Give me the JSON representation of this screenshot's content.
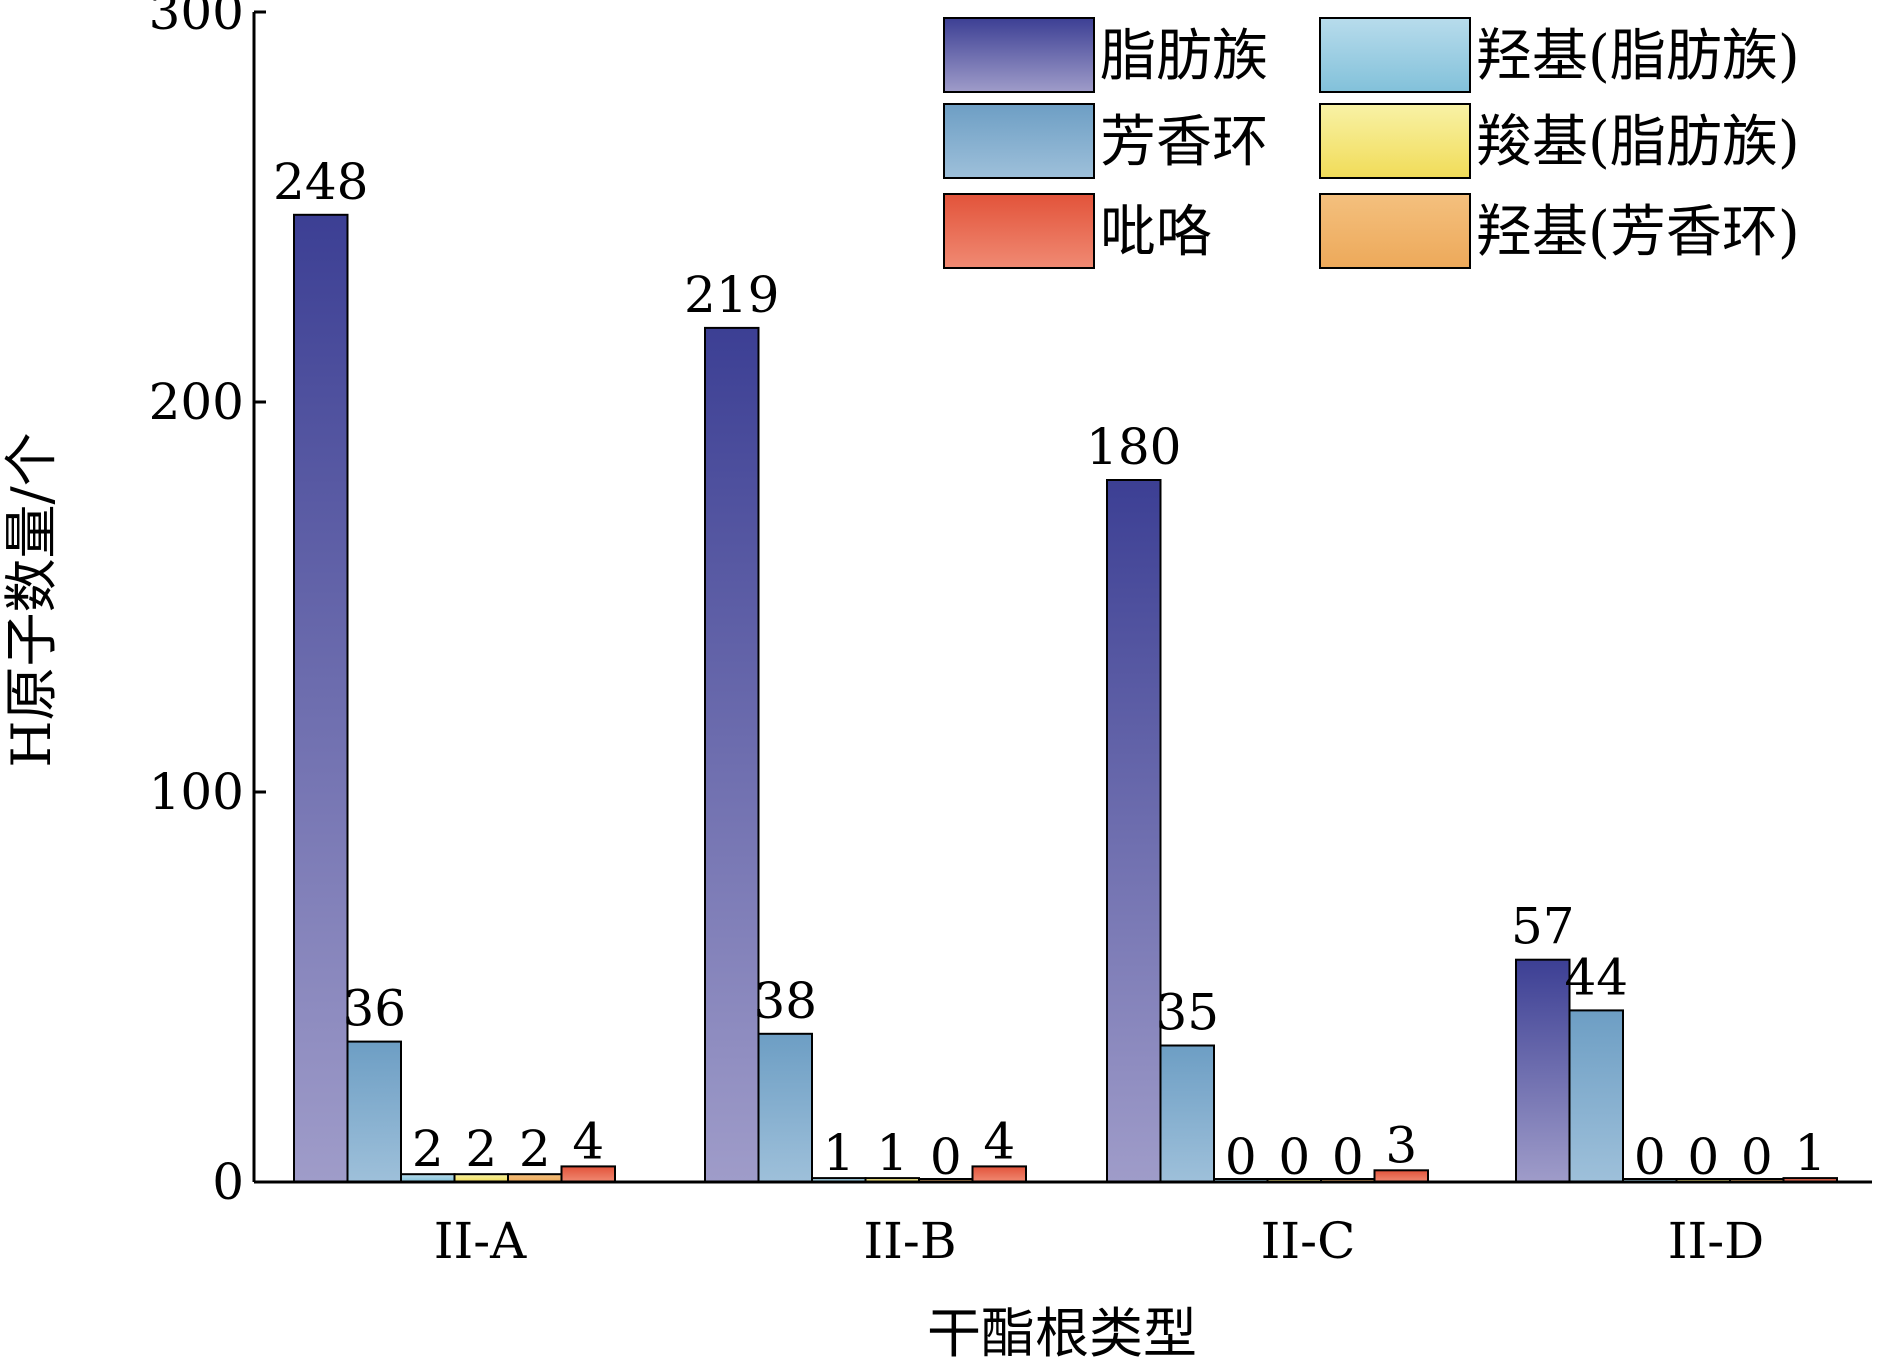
{
  "chart_data": {
    "type": "bar",
    "xlabel": "干酯根类型",
    "ylabel": "H原子数量/个",
    "ylim": [
      0,
      300
    ],
    "yticks": [
      0,
      100,
      200,
      300
    ],
    "categories": [
      "II-A",
      "II-B",
      "II-C",
      "II-D"
    ],
    "legend_position": "top-right",
    "series": [
      {
        "name": "脂肪族",
        "values": [
          248,
          219,
          180,
          57
        ],
        "color_top": "#3c3f94",
        "color_bottom": "#9f9cc9"
      },
      {
        "name": "芳香环",
        "values": [
          36,
          38,
          35,
          44
        ],
        "color_top": "#6d9ec4",
        "color_bottom": "#9ec0da"
      },
      {
        "name": "羟基(脂肪族)",
        "values": [
          2,
          1,
          0,
          0
        ],
        "color_top": "#b8dcec",
        "color_bottom": "#82c1da"
      },
      {
        "name": "羧基(脂肪族)",
        "values": [
          2,
          1,
          0,
          0
        ],
        "color_top": "#f8f2a6",
        "color_bottom": "#f1dc58"
      },
      {
        "name": "羟基(芳香环)",
        "values": [
          2,
          0,
          0,
          0
        ],
        "color_top": "#f4c07e",
        "color_bottom": "#eda95a"
      },
      {
        "name": "吡咯",
        "values": [
          4,
          4,
          3,
          1
        ],
        "color_top": "#e2533a",
        "color_bottom": "#f08a73"
      }
    ],
    "legend_layout": [
      [
        "脂肪族",
        "羟基(脂肪族)"
      ],
      [
        "芳香环",
        "羧基(脂肪族)"
      ],
      [
        "吡咯",
        "羟基(芳香环)"
      ]
    ],
    "grid": false
  }
}
